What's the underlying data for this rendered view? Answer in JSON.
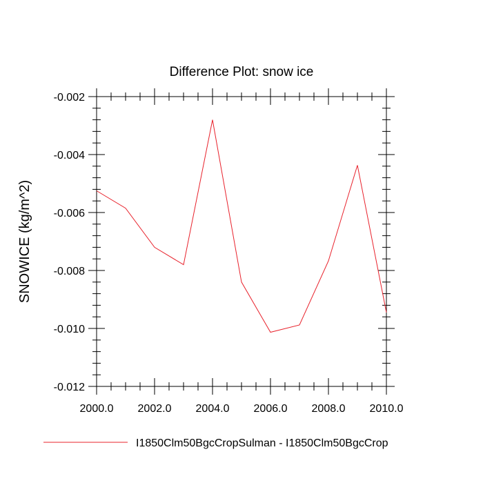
{
  "chart_data": {
    "type": "line",
    "title": "Difference Plot: snow ice",
    "xlabel": "",
    "ylabel": "SNOWICE  (kg/m^2)",
    "xlim": [
      2000.0,
      2010.0
    ],
    "ylim": [
      -0.012,
      -0.002
    ],
    "x_ticks": [
      "2000.0",
      "2002.0",
      "2004.0",
      "2006.0",
      "2008.0",
      "2010.0"
    ],
    "y_ticks": [
      "-0.002",
      "-0.004",
      "-0.006",
      "-0.008",
      "-0.010",
      "-0.012"
    ],
    "grid": false,
    "legend_position": "bottom",
    "series": [
      {
        "name": "I1850Clm50BgcCropSulman - I1850Clm50BgcCrop",
        "color": "#e8202a",
        "x": [
          2000,
          2001,
          2002,
          2003,
          2004,
          2005,
          2006,
          2007,
          2008,
          2009,
          2010
        ],
        "y": [
          -0.00525,
          -0.00585,
          -0.0072,
          -0.0078,
          -0.0028,
          -0.0084,
          -0.01013,
          -0.00988,
          -0.00767,
          -0.00437,
          -0.00945
        ]
      }
    ]
  }
}
